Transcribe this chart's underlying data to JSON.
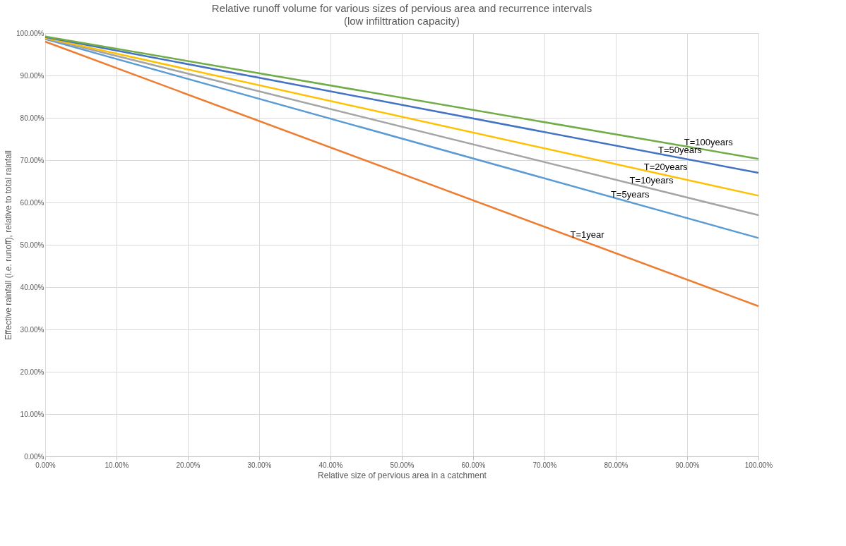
{
  "chart_data": {
    "type": "line",
    "title": "Relative runoff volume for various sizes of pervious area and recurrence intervals",
    "subtitle": "(low infilttration capacity)",
    "xlabel": "Relative size of pervious area in a catchment",
    "ylabel": "Effective rainfall (i.e. runoff), relative to total rainfall",
    "x": [
      0,
      100
    ],
    "series": [
      {
        "name": "T=1year",
        "color": "#ed7d31",
        "values": [
          98.0,
          35.5
        ]
      },
      {
        "name": "T=5years",
        "color": "#5b9bd5",
        "values": [
          98.6,
          51.6
        ]
      },
      {
        "name": "T=10years",
        "color": "#a5a5a5",
        "values": [
          98.8,
          57.0
        ]
      },
      {
        "name": "T=20years",
        "color": "#ffc000",
        "values": [
          98.9,
          61.6
        ]
      },
      {
        "name": "T=50years",
        "color": "#4472c4",
        "values": [
          99.1,
          67.0
        ]
      },
      {
        "name": "T=100years",
        "color": "#70ad47",
        "values": [
          99.2,
          70.3
        ]
      }
    ],
    "xlim": [
      0,
      100
    ],
    "ylim": [
      0,
      100
    ],
    "xticks": [
      {
        "value": 0,
        "label": "0.00%"
      },
      {
        "value": 10,
        "label": "10.00%"
      },
      {
        "value": 20,
        "label": "20.00%"
      },
      {
        "value": 30,
        "label": "30.00%"
      },
      {
        "value": 40,
        "label": "40.00%"
      },
      {
        "value": 50,
        "label": "50.00%"
      },
      {
        "value": 60,
        "label": "60.00%"
      },
      {
        "value": 70,
        "label": "70.00%"
      },
      {
        "value": 80,
        "label": "80.00%"
      },
      {
        "value": 90,
        "label": "90.00%"
      },
      {
        "value": 100,
        "label": "100.00%"
      }
    ],
    "yticks": [
      {
        "value": 0,
        "label": "0.00%"
      },
      {
        "value": 10,
        "label": "10.00%"
      },
      {
        "value": 20,
        "label": "20.00%"
      },
      {
        "value": 30,
        "label": "30.00%"
      },
      {
        "value": 40,
        "label": "40.00%"
      },
      {
        "value": 50,
        "label": "50.00%"
      },
      {
        "value": 60,
        "label": "60.00%"
      },
      {
        "value": 70,
        "label": "70.00%"
      },
      {
        "value": 80,
        "label": "80.00%"
      },
      {
        "value": 90,
        "label": "90.00%"
      },
      {
        "value": 100,
        "label": "100.00%"
      }
    ],
    "grid": true,
    "legend": false,
    "marker": "none",
    "line_style": "solid"
  }
}
